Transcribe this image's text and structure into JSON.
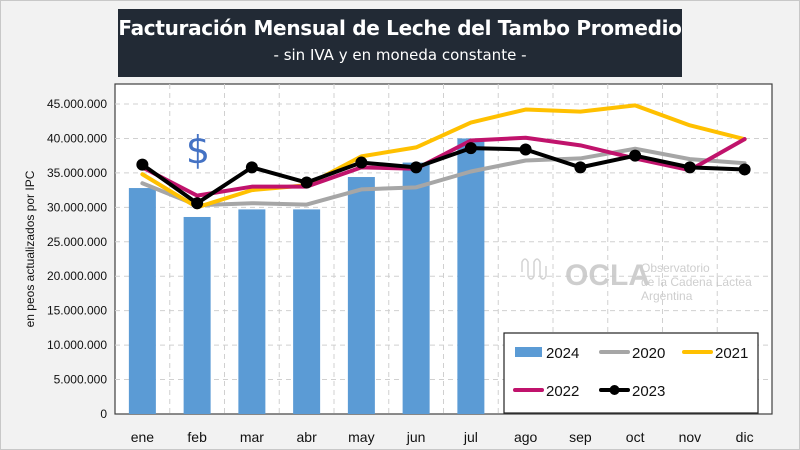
{
  "chart_data": {
    "type": "bar+line",
    "title": "Facturación Mensual de Leche del Tambo Promedio",
    "subtitle": "- sin IVA y en moneda constante -",
    "xlabel": "",
    "ylabel": "en peos actualizados por IPC",
    "categories": [
      "ene",
      "feb",
      "mar",
      "abr",
      "may",
      "jun",
      "jul",
      "ago",
      "sep",
      "oct",
      "nov",
      "dic"
    ],
    "ylim": [
      0,
      45000000
    ],
    "yticks": [
      0,
      5000000,
      10000000,
      15000000,
      20000000,
      25000000,
      30000000,
      35000000,
      40000000,
      45000000
    ],
    "ytick_labels": [
      "0",
      "5.000.000",
      "10.000.000",
      "15.000.000",
      "20.000.000",
      "25.000.000",
      "30.000.000",
      "35.000.000",
      "40.000.000",
      "45.000.000"
    ],
    "grid": true,
    "legend_position": "bottom-right",
    "bars": {
      "name": "2024",
      "color": "#5b9bd5",
      "values": [
        32800000,
        28600000,
        29700000,
        29700000,
        34400000,
        36500000,
        40000000,
        null,
        null,
        null,
        null,
        null
      ]
    },
    "series": [
      {
        "name": "2020",
        "color": "#a6a6a6",
        "markers": false,
        "values": [
          33500000,
          30300000,
          30600000,
          30400000,
          32600000,
          32900000,
          35200000,
          36800000,
          37100000,
          38500000,
          37000000,
          36400000
        ]
      },
      {
        "name": "2021",
        "color": "#ffc000",
        "markers": false,
        "values": [
          34800000,
          30000000,
          32500000,
          33200000,
          37400000,
          38700000,
          42300000,
          44200000,
          43900000,
          44800000,
          41900000,
          39900000
        ]
      },
      {
        "name": "2022",
        "color": "#c0136c",
        "markers": false,
        "values": [
          35800000,
          31700000,
          33000000,
          33000000,
          35800000,
          35600000,
          39700000,
          40100000,
          39000000,
          37100000,
          35400000,
          39900000
        ]
      },
      {
        "name": "2023",
        "color": "#000000",
        "markers": true,
        "values": [
          36200000,
          30600000,
          35800000,
          33600000,
          36500000,
          35800000,
          38600000,
          38400000,
          35800000,
          37500000,
          35800000,
          35500000
        ]
      }
    ],
    "legend": [
      "2024",
      "2020",
      "2021",
      "2022",
      "2023"
    ],
    "annotations": [
      "$"
    ]
  },
  "watermark": {
    "logo": "OCLA",
    "line1": "Observatorio",
    "line2": "de la Cadena Láctea",
    "line3": "Argentina"
  },
  "icons": {
    "dollar": "$"
  }
}
